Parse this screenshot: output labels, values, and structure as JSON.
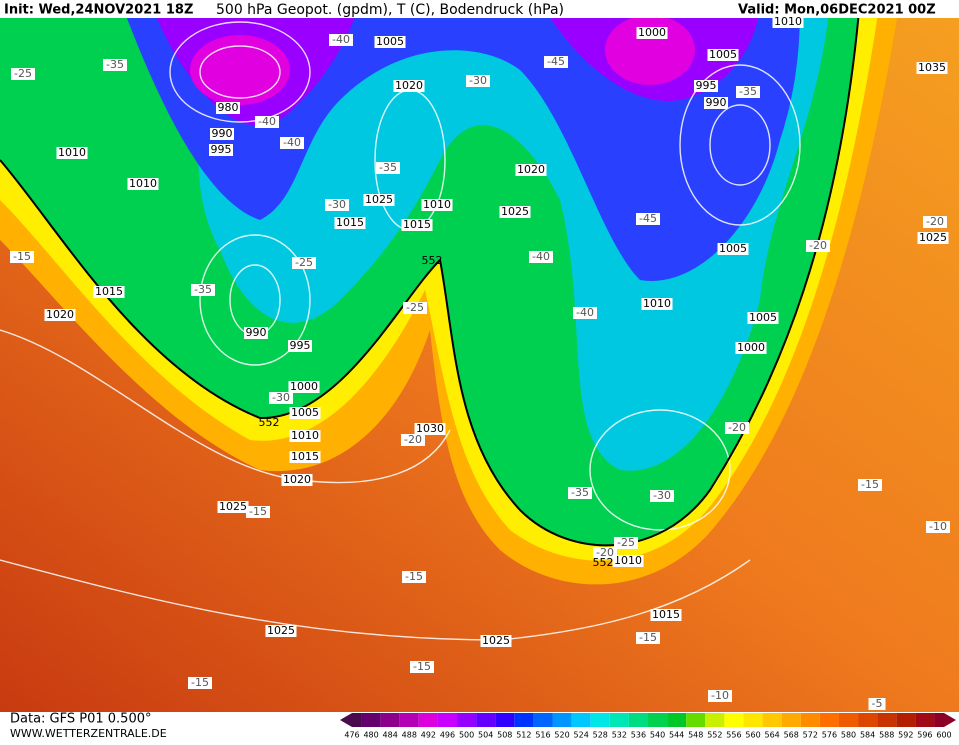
{
  "header": {
    "init": "Init: Wed,24NOV2021 18Z",
    "title": "500 hPa Geopot. (gpdm), T (C), Bodendruck (hPa)",
    "valid": "Valid: Mon,06DEC2021 00Z"
  },
  "footer": {
    "data": "Data: GFS P01 0.500°",
    "site": "WWW.WETTERZENTRALE.DE"
  },
  "colorbar": {
    "values": [
      476,
      480,
      484,
      488,
      492,
      496,
      500,
      504,
      508,
      512,
      516,
      520,
      524,
      528,
      532,
      536,
      540,
      544,
      548,
      552,
      556,
      560,
      564,
      568,
      572,
      576,
      580,
      584,
      588,
      592,
      596,
      600
    ],
    "colors": [
      "#4b0a4b",
      "#64006e",
      "#8c008c",
      "#b400b4",
      "#dc00dc",
      "#c800ff",
      "#9600ff",
      "#6400ff",
      "#3200ff",
      "#0032ff",
      "#0064ff",
      "#0096ff",
      "#00c8ff",
      "#00e6e6",
      "#00e6b4",
      "#00dc82",
      "#00d250",
      "#00c828",
      "#64dc00",
      "#c8f000",
      "#ffff00",
      "#ffe600",
      "#ffc800",
      "#ffaa00",
      "#ff8c00",
      "#ff6e00",
      "#f05a00",
      "#dc4600",
      "#c83200",
      "#b41e00",
      "#a00a14",
      "#8c0028"
    ]
  },
  "map": {
    "isobar_labels": [
      1005,
      1000,
      1010,
      1005,
      995,
      990,
      1035,
      980,
      990,
      995,
      1010,
      1010,
      1020,
      1020,
      1025,
      1010,
      1015,
      1015,
      1025,
      1005,
      1025,
      1015,
      1020,
      990,
      995,
      1010,
      1005,
      1000,
      1000,
      1005,
      1010,
      1030,
      1015,
      1020,
      1025,
      1010,
      1015,
      1025,
      1025
    ],
    "temperature_labels": [
      -25,
      -35,
      -40,
      -45,
      -35,
      -30,
      -40,
      -40,
      -35,
      -30,
      -45,
      -40,
      -20,
      -20,
      -15,
      -25,
      -35,
      -25,
      -40,
      -30,
      -20,
      -20,
      -15,
      -35,
      -30,
      -25,
      -20,
      -15,
      -10,
      -15,
      -15,
      -15,
      -15,
      -10,
      -5
    ],
    "geopotential_labels": [
      552,
      552,
      552
    ]
  }
}
